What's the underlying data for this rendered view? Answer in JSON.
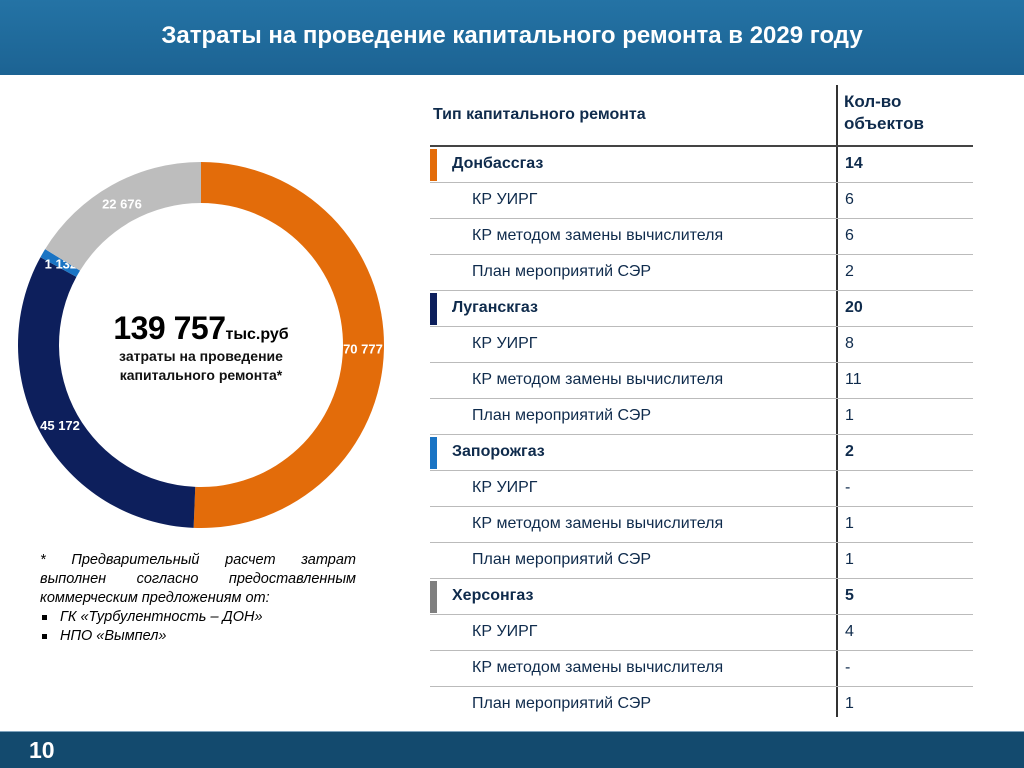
{
  "title": "Затраты на проведение капитального ремонта в 2029 году",
  "page_number": "10",
  "chart_data": {
    "type": "pie",
    "variant": "donut",
    "values": [
      70777,
      45172,
      1132,
      22676
    ],
    "labels": [
      "70 777",
      "45 172",
      "1 132",
      "22 676"
    ],
    "colors": [
      "#e36c0a",
      "#0d1f5c",
      "#1a74c4",
      "#bdbdbd"
    ],
    "center_value": "139 757",
    "center_unit": "тыс.руб",
    "center_caption_1": "затраты на проведение",
    "center_caption_2": "капитального ремонта*"
  },
  "note": {
    "text": "* Предварительный расчет затрат выполнен согласно предоставленным коммерческим предложениям от:",
    "items": [
      "ГК «Турбулентность – ДОН»",
      "НПО «Вымпел»"
    ]
  },
  "table": {
    "col1": "Тип капитального ремонта",
    "col2_line1": "Кол-во",
    "col2_line2": "объектов",
    "rows": [
      {
        "type": "group",
        "label": "Донбассгаз",
        "value": "14",
        "color": "#e36c0a"
      },
      {
        "type": "sub",
        "label": "КР УИРГ",
        "value": "6"
      },
      {
        "type": "sub",
        "label": "КР методом замены вычислителя",
        "value": "6"
      },
      {
        "type": "sub",
        "label": "План мероприятий СЭР",
        "value": "2"
      },
      {
        "type": "group",
        "label": "Луганскгаз",
        "value": "20",
        "color": "#0d1f5c"
      },
      {
        "type": "sub",
        "label": "КР УИРГ",
        "value": "8"
      },
      {
        "type": "sub",
        "label": "КР методом замены вычислителя",
        "value": "11"
      },
      {
        "type": "sub",
        "label": "План мероприятий СЭР",
        "value": "1"
      },
      {
        "type": "group",
        "label": "Запорожгаз",
        "value": "2",
        "color": "#1a74c4"
      },
      {
        "type": "sub",
        "label": "КР УИРГ",
        "value": "-"
      },
      {
        "type": "sub",
        "label": "КР методом замены вычислителя",
        "value": "1"
      },
      {
        "type": "sub",
        "label": "План мероприятий СЭР",
        "value": "1"
      },
      {
        "type": "group",
        "label": "Херсонгаз",
        "value": "5",
        "color": "#7f7f7f"
      },
      {
        "type": "sub",
        "label": "КР УИРГ",
        "value": "4"
      },
      {
        "type": "sub",
        "label": "КР методом замены вычислителя",
        "value": "-"
      },
      {
        "type": "sub",
        "label": "План мероприятий СЭР",
        "value": "1"
      }
    ]
  }
}
